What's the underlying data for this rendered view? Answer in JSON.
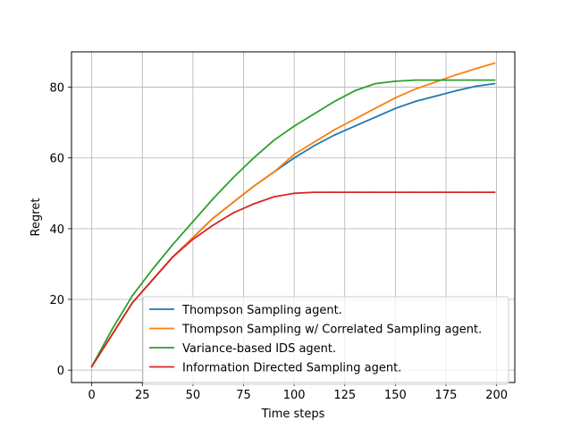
{
  "chart_data": {
    "type": "line",
    "title": "",
    "xlabel": "Time steps",
    "ylabel": "Regret",
    "xlim": [
      -10,
      209
    ],
    "ylim": [
      -3.5,
      90
    ],
    "xticks": [
      0,
      25,
      50,
      75,
      100,
      125,
      150,
      175,
      200
    ],
    "yticks": [
      0,
      20,
      40,
      60,
      80
    ],
    "grid": true,
    "legend_position": "lower-right",
    "series": [
      {
        "name": "Thompson Sampling agent.",
        "color": "#1f77b4",
        "x": [
          0,
          10,
          20,
          30,
          40,
          50,
          60,
          70,
          80,
          90,
          100,
          110,
          120,
          130,
          140,
          150,
          160,
          170,
          180,
          190,
          199
        ],
        "y": [
          1,
          10,
          19,
          25.5,
          32,
          37.5,
          43,
          47.5,
          52,
          56,
          60,
          63.5,
          66.5,
          69,
          71.5,
          74,
          76,
          77.5,
          79,
          80.3,
          81
        ]
      },
      {
        "name": "Thompson Sampling w/ Correlated Sampling agent.",
        "color": "#ff7f0e",
        "x": [
          0,
          10,
          20,
          30,
          40,
          50,
          60,
          70,
          80,
          90,
          100,
          110,
          120,
          130,
          140,
          150,
          160,
          170,
          180,
          190,
          199
        ],
        "y": [
          1,
          10,
          19,
          25.5,
          32,
          37.5,
          43,
          47.5,
          52,
          56,
          61,
          64.5,
          68,
          71,
          74,
          77,
          79.5,
          81.5,
          83.5,
          85.3,
          86.8
        ]
      },
      {
        "name": "Variance-based IDS agent.",
        "color": "#2ca02c",
        "x": [
          0,
          10,
          20,
          30,
          40,
          50,
          60,
          70,
          80,
          90,
          100,
          110,
          120,
          130,
          140,
          150,
          160,
          170,
          180,
          190,
          199
        ],
        "y": [
          1,
          11.5,
          21,
          28.5,
          35.5,
          42,
          48.5,
          54.5,
          60,
          65,
          69,
          72.5,
          76,
          79,
          81,
          81.7,
          82,
          82,
          82,
          82,
          82
        ]
      },
      {
        "name": "Information Directed Sampling agent.",
        "color": "#d62728",
        "x": [
          0,
          10,
          20,
          30,
          40,
          50,
          60,
          70,
          80,
          90,
          100,
          110,
          120,
          130,
          140,
          150,
          160,
          170,
          180,
          190,
          199
        ],
        "y": [
          1,
          10,
          19,
          25.5,
          32,
          37,
          41,
          44.5,
          47,
          49,
          50,
          50.3,
          50.3,
          50.3,
          50.3,
          50.3,
          50.3,
          50.3,
          50.3,
          50.3,
          50.3
        ]
      }
    ]
  }
}
